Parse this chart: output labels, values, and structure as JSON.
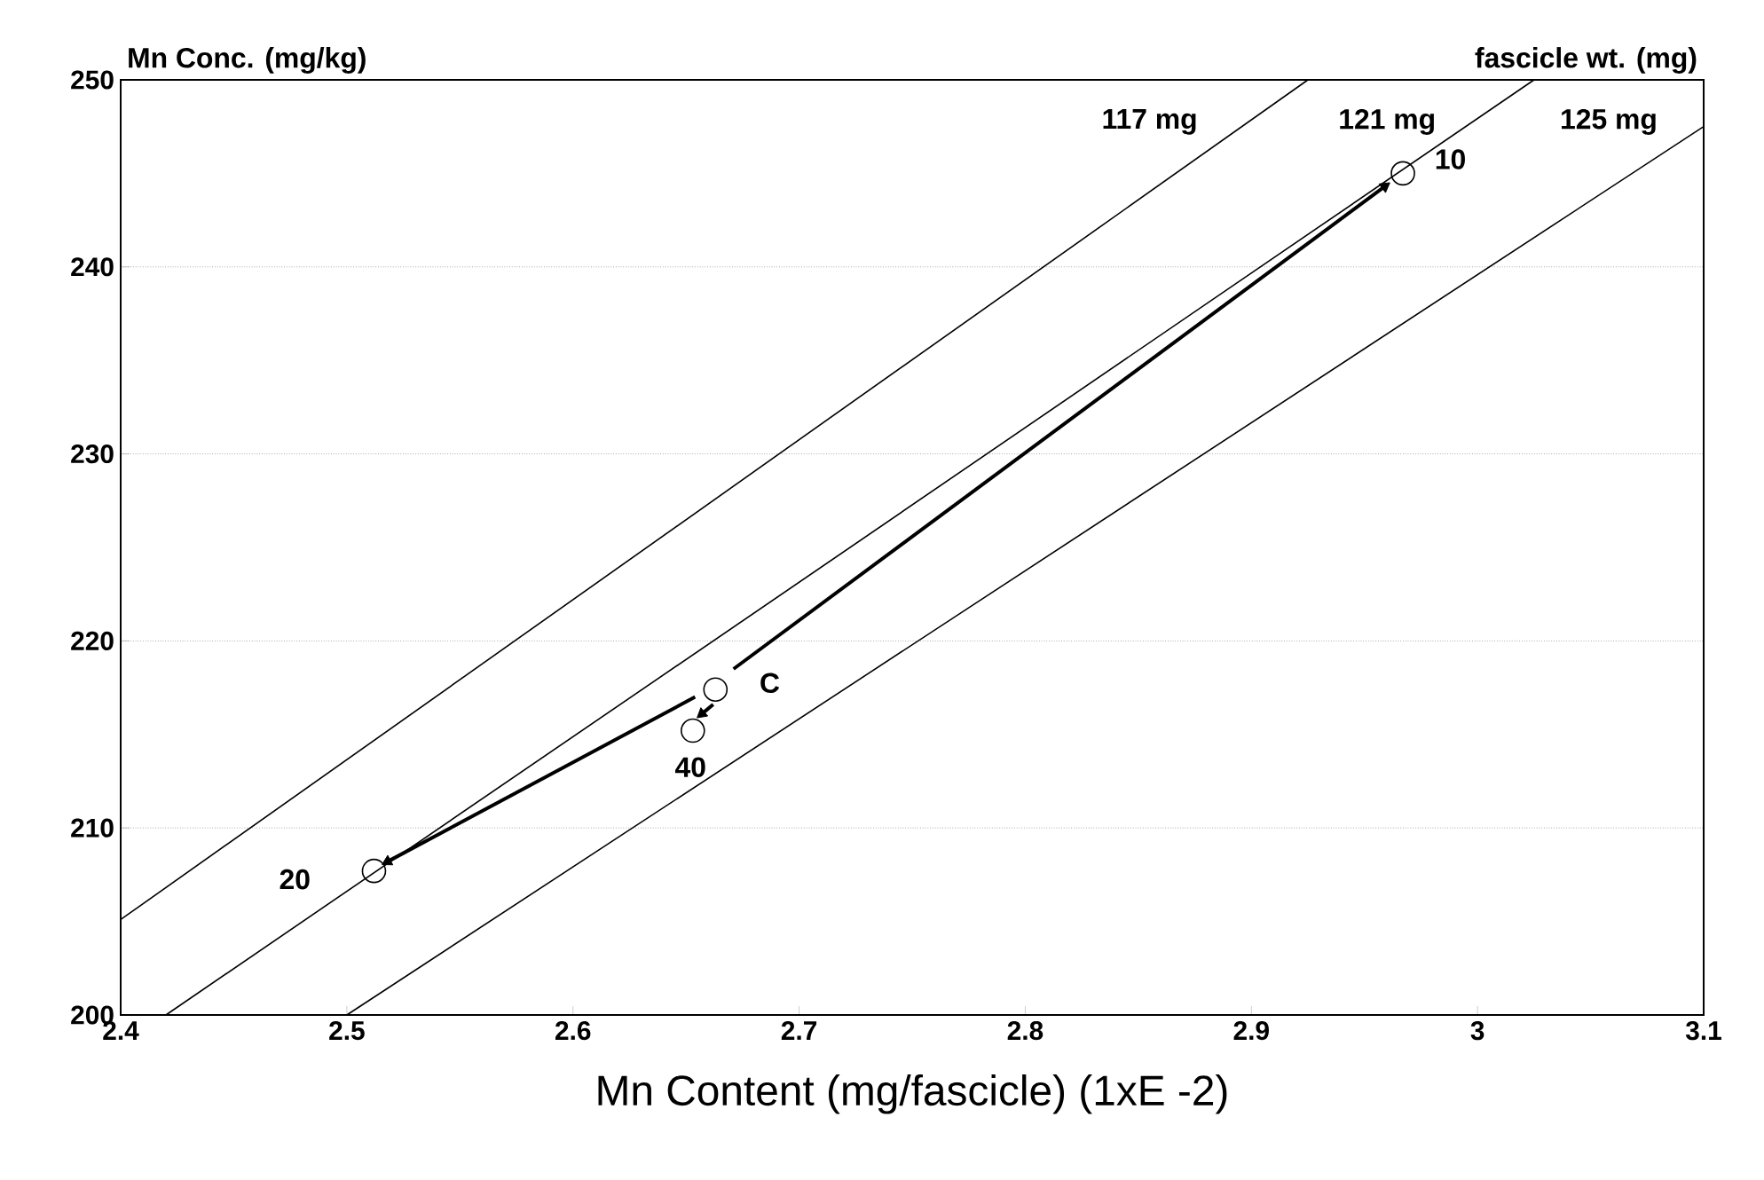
{
  "chart_data": {
    "type": "line",
    "xlabel": "Mn Content (mg/fascicle) (1xE -2)",
    "ylabel": "Mn Conc. (mg/kg)",
    "xlim": [
      2.4,
      3.1
    ],
    "xticks": [
      2.4,
      2.5,
      2.6,
      2.7,
      2.8,
      2.9,
      3,
      3.1
    ],
    "ylim": [
      200,
      250
    ],
    "yticks": [
      200,
      210,
      220,
      230,
      240,
      250
    ],
    "grid": "y",
    "series": [
      {
        "type": "line",
        "color": "#000000",
        "x": [
          2.4,
          2.925
        ],
        "values": [
          205.1,
          250
        ]
      },
      {
        "type": "line",
        "color": "#000000",
        "x": [
          2.42,
          3.025
        ],
        "values": [
          200,
          250
        ]
      },
      {
        "type": "line",
        "color": "#000000",
        "x": [
          2.5,
          3.1
        ],
        "values": [
          200,
          247.5
        ]
      },
      {
        "type": "line",
        "color": "#000000",
        "x": [
          2.654,
          2.518
        ],
        "values": [
          217.0,
          208.2
        ]
      },
      {
        "type": "line",
        "color": "#000000",
        "x": [
          2.662,
          2.657
        ],
        "values": [
          216.6,
          216.1
        ]
      },
      {
        "type": "line",
        "color": "#000000",
        "x": [
          2.671,
          2.959
        ],
        "values": [
          218.5,
          244.3
        ]
      },
      {
        "type": "scatter",
        "color": "#000000",
        "marker": "circle",
        "x": [
          2.967,
          2.512,
          2.653,
          2.663
        ],
        "values": [
          245.0,
          207.7,
          215.2,
          217.4
        ]
      }
    ],
    "annotations": [
      "fascicle wt. (mg)",
      "117 mg",
      "121 mg",
      "125 mg",
      "10",
      "20",
      "40",
      "C"
    ]
  }
}
